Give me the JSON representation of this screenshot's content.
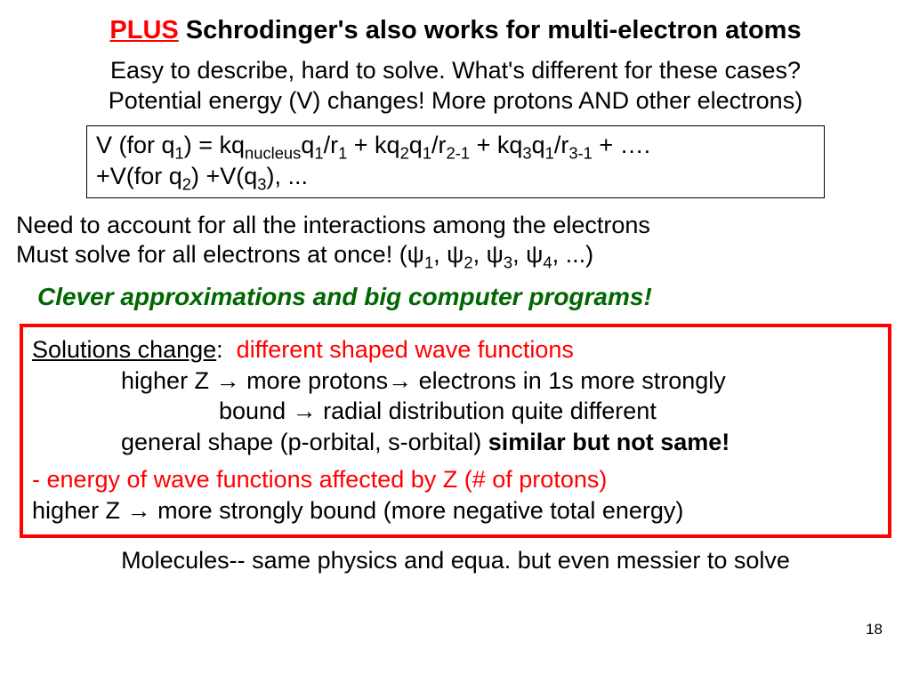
{
  "title": {
    "plus": "PLUS",
    "rest": " Schrodinger's also works for multi-electron atoms"
  },
  "intro_line1": "Easy to describe, hard to solve. What's different for these cases?",
  "intro_line2": "Potential energy (V) changes!  More protons AND other electrons)",
  "formula_line1_pre": "V (for q",
  "formula_line1_mid": ") = kq",
  "formula_q1": "q",
  "formula_rest": "/r",
  "formula_plus": " + kq",
  "formula_tail": " + ….",
  "formula_line2_a": "+V(for q",
  "formula_line2_b": ") +V(q",
  "formula_line2_c": "), ...",
  "need_line1": "Need to account for all the interactions among the electrons",
  "need_line2_pre": "Must solve for all electrons at once! (",
  "psi": "ψ",
  "need_line2_post": ", ...)",
  "clever": "Clever approximations and  big computer programs!",
  "solutions_label": "Solutions change",
  "solutions_red": "different shaped wave functions",
  "higherZ_1a": "higher Z ",
  "arrow": "→",
  "higherZ_1b": " more protons",
  "higherZ_1c": " electrons in 1s more strongly",
  "higherZ_2a": "bound ",
  "higherZ_2b": " radial distribution quite different",
  "general_a": "general shape (p-orbital, s-orbital) ",
  "general_b": "similar but not same!",
  "energy_red": "- energy of wave functions affected by Z (# of protons)",
  "energy_2a": "higher Z ",
  "energy_2b": "  more strongly  bound (more negative total energy)",
  "molecules": "Molecules-- same physics and equa. but even messier to solve",
  "pagenum": "18",
  "colors": {
    "red": "#ff0000",
    "green": "#006600",
    "black": "#000000",
    "bg": "#ffffff"
  }
}
